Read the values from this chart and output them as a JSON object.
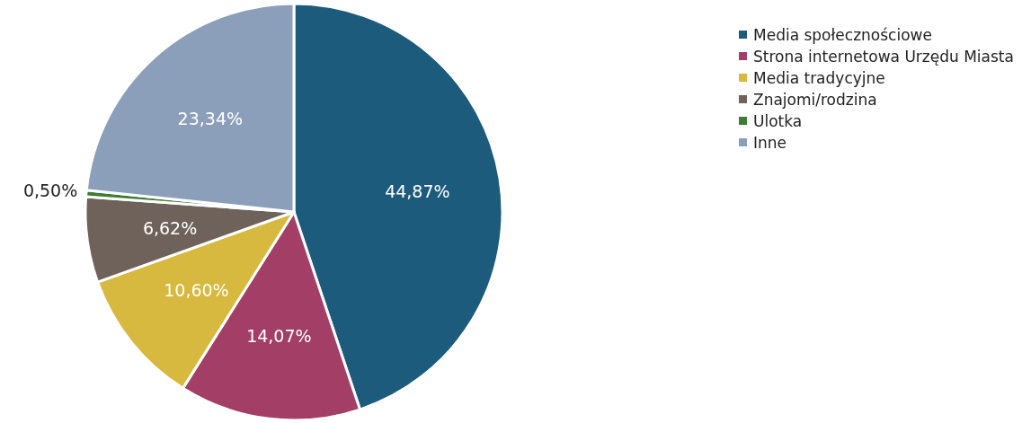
{
  "chart_data": {
    "type": "pie",
    "categories": [
      "Media społecznościowe",
      "Strona internetowa Urzędu Miasta",
      "Media tradycyjne",
      "Znajomi/rodzina",
      "Ulotka",
      "Inne"
    ],
    "values": [
      44.87,
      14.07,
      10.6,
      6.62,
      0.5,
      23.34
    ],
    "value_labels": [
      "44,87%",
      "14,07%",
      "10,60%",
      "6,62%",
      "0,50%",
      "23,34%"
    ],
    "colors": [
      "#1d5b7c",
      "#a33e66",
      "#d6b93e",
      "#6e625a",
      "#3e7c33",
      "#8c9fba"
    ],
    "legend": "right"
  }
}
